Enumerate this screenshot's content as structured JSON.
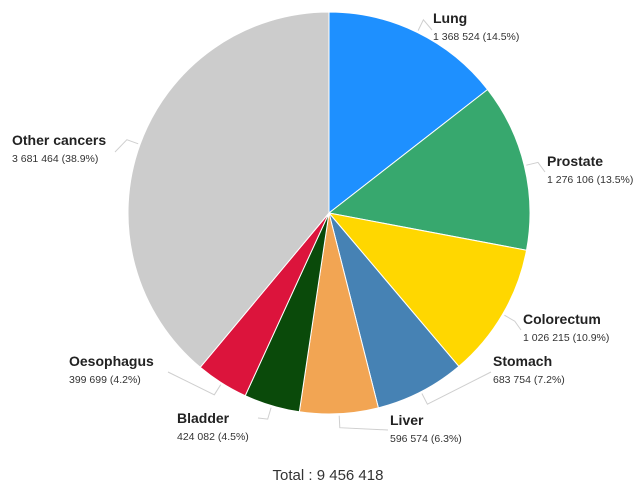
{
  "chart_data": {
    "type": "pie",
    "total_label": "Total : 9 456 418",
    "slices": [
      {
        "name": "Lung",
        "value": 1368524,
        "value_label": "1 368 524 (14.5%)",
        "percent": 14.5,
        "color": "#1e90ff"
      },
      {
        "name": "Prostate",
        "value": 1276106,
        "value_label": "1 276 106 (13.5%)",
        "percent": 13.5,
        "color": "#37a86e"
      },
      {
        "name": "Colorectum",
        "value": 1026215,
        "value_label": "1 026 215 (10.9%)",
        "percent": 10.9,
        "color": "#ffd700"
      },
      {
        "name": "Stomach",
        "value": 683754,
        "value_label": "683 754 (7.2%)",
        "percent": 7.2,
        "color": "#4682b4"
      },
      {
        "name": "Liver",
        "value": 596574,
        "value_label": "596 574 (6.3%)",
        "percent": 6.3,
        "color": "#f2a553"
      },
      {
        "name": "Bladder",
        "value": 424082,
        "value_label": "424 082 (4.5%)",
        "percent": 4.5,
        "color": "#0a4a0a"
      },
      {
        "name": "Oesophagus",
        "value": 399699,
        "value_label": "399 699 (4.2%)",
        "percent": 4.2,
        "color": "#dc143c"
      },
      {
        "name": "Other cancers",
        "value": 3681464,
        "value_label": "3 681 464 (38.9%)",
        "percent": 38.9,
        "color": "#cccccc"
      }
    ]
  }
}
